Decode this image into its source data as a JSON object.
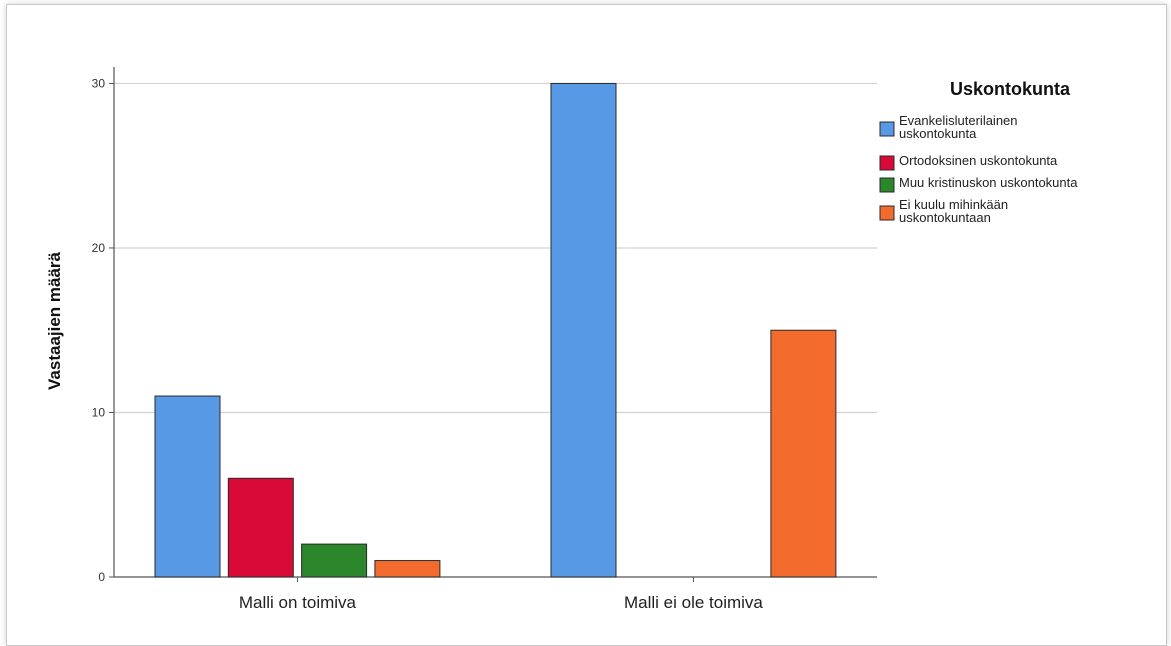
{
  "chart_data": {
    "type": "bar",
    "categories": [
      "Malli on toimiva",
      "Malli ei ole toimiva"
    ],
    "series": [
      {
        "name": "Evankelisluterilainen uskontokunta",
        "values": [
          11,
          30
        ],
        "color": "#5899e6"
      },
      {
        "name": "Ortodoksinen uskontokunta",
        "values": [
          6,
          0
        ],
        "color": "#d90a36"
      },
      {
        "name": "Muu kristinuskon uskontokunta",
        "values": [
          2,
          0
        ],
        "color": "#2b862c"
      },
      {
        "name": "Ei kuulu mihinkään uskontokuntaan",
        "values": [
          1,
          15
        ],
        "color": "#f26a2c"
      }
    ],
    "legend_title": "Uskontokunta",
    "legend_placement": "top-right",
    "xlabel": "",
    "ylabel": "Vastaajien määrä",
    "ylim": [
      0,
      31
    ],
    "yticks": [
      0,
      10,
      20,
      30
    ],
    "grid": true
  }
}
